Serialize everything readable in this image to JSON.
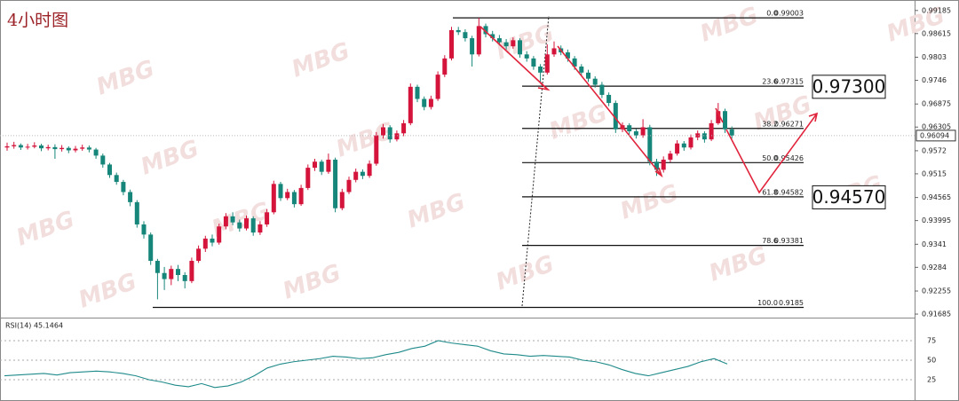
{
  "chart_data": {
    "type": "candlestick",
    "title": "4小时图",
    "watermark": "MBG",
    "up_color": "#d4143a",
    "down_color": "#16867a",
    "ylim": [
      0.9162,
      0.994
    ],
    "yticks": [
      0.99185,
      0.98615,
      0.9803,
      0.9746,
      0.96875,
      0.96305,
      0.9572,
      0.9515,
      0.94565,
      0.93995,
      0.9341,
      0.9284,
      0.92255,
      0.91685
    ],
    "candles": [
      [
        0.958,
        0.9592,
        0.9572,
        0.9583
      ],
      [
        0.9583,
        0.9594,
        0.9577,
        0.9586
      ],
      [
        0.9586,
        0.959,
        0.9574,
        0.958
      ],
      [
        0.958,
        0.9589,
        0.9575,
        0.9582
      ],
      [
        0.9582,
        0.9593,
        0.9578,
        0.9585
      ],
      [
        0.9585,
        0.9589,
        0.9571,
        0.9578
      ],
      [
        0.9578,
        0.9587,
        0.9573,
        0.9581
      ],
      [
        0.9581,
        0.9588,
        0.9552,
        0.9576
      ],
      [
        0.9576,
        0.9586,
        0.957,
        0.9579
      ],
      [
        0.9579,
        0.9583,
        0.9566,
        0.9573
      ],
      [
        0.9573,
        0.9584,
        0.9568,
        0.9577
      ],
      [
        0.9577,
        0.9587,
        0.9572,
        0.958
      ],
      [
        0.958,
        0.9585,
        0.9568,
        0.9575
      ],
      [
        0.9575,
        0.9579,
        0.9552,
        0.956
      ],
      [
        0.956,
        0.9565,
        0.953,
        0.9538
      ],
      [
        0.9538,
        0.9542,
        0.9505,
        0.9512
      ],
      [
        0.9512,
        0.9518,
        0.9488,
        0.9495
      ],
      [
        0.9495,
        0.95,
        0.9462,
        0.947
      ],
      [
        0.947,
        0.9476,
        0.9435,
        0.9445
      ],
      [
        0.9445,
        0.945,
        0.9382,
        0.939
      ],
      [
        0.939,
        0.9398,
        0.9355,
        0.9365
      ],
      [
        0.9365,
        0.937,
        0.929,
        0.93
      ],
      [
        0.93,
        0.9305,
        0.9205,
        0.927
      ],
      [
        0.927,
        0.9285,
        0.9228,
        0.9255
      ],
      [
        0.9255,
        0.9288,
        0.924,
        0.928
      ],
      [
        0.928,
        0.929,
        0.925,
        0.9265
      ],
      [
        0.9265,
        0.9272,
        0.9232,
        0.925
      ],
      [
        0.925,
        0.9308,
        0.9245,
        0.93
      ],
      [
        0.93,
        0.9338,
        0.9295,
        0.933
      ],
      [
        0.933,
        0.9362,
        0.9322,
        0.9355
      ],
      [
        0.9355,
        0.9365,
        0.9336,
        0.9345
      ],
      [
        0.9345,
        0.9392,
        0.934,
        0.9385
      ],
      [
        0.9385,
        0.9418,
        0.9378,
        0.941
      ],
      [
        0.941,
        0.942,
        0.9388,
        0.9395
      ],
      [
        0.9395,
        0.9402,
        0.9372,
        0.938
      ],
      [
        0.938,
        0.9412,
        0.9375,
        0.9405
      ],
      [
        0.9405,
        0.941,
        0.9362,
        0.937
      ],
      [
        0.937,
        0.9398,
        0.9364,
        0.939
      ],
      [
        0.939,
        0.9428,
        0.9384,
        0.942
      ],
      [
        0.942,
        0.9498,
        0.9415,
        0.949
      ],
      [
        0.949,
        0.9495,
        0.9448,
        0.9455
      ],
      [
        0.9455,
        0.9478,
        0.945,
        0.947
      ],
      [
        0.947,
        0.9475,
        0.9432,
        0.944
      ],
      [
        0.944,
        0.9488,
        0.9436,
        0.948
      ],
      [
        0.948,
        0.9538,
        0.9475,
        0.953
      ],
      [
        0.953,
        0.9552,
        0.9522,
        0.9545
      ],
      [
        0.9545,
        0.955,
        0.9512,
        0.952
      ],
      [
        0.952,
        0.9565,
        0.9515,
        0.955
      ],
      [
        0.955,
        0.9555,
        0.942,
        0.943
      ],
      [
        0.943,
        0.9478,
        0.9425,
        0.947
      ],
      [
        0.947,
        0.9508,
        0.9465,
        0.95
      ],
      [
        0.95,
        0.9528,
        0.9494,
        0.952
      ],
      [
        0.952,
        0.9526,
        0.9502,
        0.951
      ],
      [
        0.951,
        0.9548,
        0.9505,
        0.954
      ],
      [
        0.954,
        0.9618,
        0.9535,
        0.961
      ],
      [
        0.961,
        0.9638,
        0.9602,
        0.963
      ],
      [
        0.963,
        0.9635,
        0.9592,
        0.96
      ],
      [
        0.96,
        0.9622,
        0.9595,
        0.9615
      ],
      [
        0.9615,
        0.9648,
        0.9608,
        0.964
      ],
      [
        0.964,
        0.9738,
        0.9635,
        0.973
      ],
      [
        0.973,
        0.9735,
        0.9692,
        0.97
      ],
      [
        0.97,
        0.9706,
        0.9672,
        0.968
      ],
      [
        0.968,
        0.9708,
        0.9674,
        0.97
      ],
      [
        0.97,
        0.9768,
        0.9695,
        0.976
      ],
      [
        0.976,
        0.9808,
        0.9754,
        0.98
      ],
      [
        0.98,
        0.9878,
        0.9795,
        0.987
      ],
      [
        0.987,
        0.9878,
        0.9858,
        0.9865
      ],
      [
        0.9865,
        0.9872,
        0.9842,
        0.985
      ],
      [
        0.985,
        0.9856,
        0.978,
        0.981
      ],
      [
        0.981,
        0.99,
        0.9805,
        0.988
      ],
      [
        0.988,
        0.9886,
        0.9852,
        0.986
      ],
      [
        0.986,
        0.9868,
        0.9842,
        0.985
      ],
      [
        0.985,
        0.9858,
        0.9832,
        0.984
      ],
      [
        0.984,
        0.9848,
        0.9822,
        0.983
      ],
      [
        0.983,
        0.9852,
        0.9824,
        0.9845
      ],
      [
        0.9845,
        0.985,
        0.9802,
        0.981
      ],
      [
        0.981,
        0.9818,
        0.9792,
        0.98
      ],
      [
        0.98,
        0.9806,
        0.9772,
        0.978
      ],
      [
        0.978,
        0.9786,
        0.974,
        0.9765
      ],
      [
        0.9765,
        0.9835,
        0.976,
        0.981
      ],
      [
        0.981,
        0.9842,
        0.9804,
        0.9825
      ],
      [
        0.9825,
        0.9832,
        0.9808,
        0.9815
      ],
      [
        0.9815,
        0.9822,
        0.9792,
        0.98
      ],
      [
        0.98,
        0.9806,
        0.9772,
        0.978
      ],
      [
        0.978,
        0.9786,
        0.9758,
        0.9765
      ],
      [
        0.9765,
        0.9772,
        0.9742,
        0.975
      ],
      [
        0.975,
        0.9756,
        0.9728,
        0.9735
      ],
      [
        0.9735,
        0.9742,
        0.9702,
        0.971
      ],
      [
        0.971,
        0.9716,
        0.9682,
        0.969
      ],
      [
        0.969,
        0.9696,
        0.9616,
        0.9625
      ],
      [
        0.9625,
        0.9642,
        0.9618,
        0.9635
      ],
      [
        0.9635,
        0.964,
        0.9612,
        0.962
      ],
      [
        0.962,
        0.9626,
        0.9602,
        0.961
      ],
      [
        0.961,
        0.965,
        0.9604,
        0.963
      ],
      [
        0.963,
        0.9636,
        0.9536,
        0.9545
      ],
      [
        0.9545,
        0.9552,
        0.951,
        0.9525
      ],
      [
        0.9525,
        0.9558,
        0.9518,
        0.955
      ],
      [
        0.955,
        0.9572,
        0.9544,
        0.9565
      ],
      [
        0.9565,
        0.9598,
        0.956,
        0.959
      ],
      [
        0.959,
        0.9596,
        0.9572,
        0.958
      ],
      [
        0.958,
        0.9612,
        0.9575,
        0.9605
      ],
      [
        0.9605,
        0.9622,
        0.9598,
        0.9615
      ],
      [
        0.9615,
        0.962,
        0.9592,
        0.96
      ],
      [
        0.96,
        0.9648,
        0.9596,
        0.964
      ],
      [
        0.964,
        0.969,
        0.9636,
        0.967
      ],
      [
        0.967,
        0.9676,
        0.9616,
        0.9625
      ],
      [
        0.9625,
        0.9632,
        0.9602,
        0.96094
      ]
    ],
    "fib_levels": [
      {
        "ratio": "0.0",
        "price": 0.99003
      },
      {
        "ratio": "23.6",
        "price": 0.97315
      },
      {
        "ratio": "38.2",
        "price": 0.96271
      },
      {
        "ratio": "50.0",
        "price": 0.95426
      },
      {
        "ratio": "61.8",
        "price": 0.94582
      },
      {
        "ratio": "78.6",
        "price": 0.93381
      },
      {
        "ratio": "100.0",
        "price": 0.9185
      }
    ],
    "targets": [
      {
        "value": 0.973,
        "label": "0.97300"
      },
      {
        "value": 0.9457,
        "label": "0.94570"
      }
    ],
    "current_price": 0.96094,
    "rsi": {
      "label": "RSI(14) 45.1464",
      "color": "#1f8a8a",
      "ylim": [
        0,
        100
      ],
      "yticks": [
        25,
        50,
        75
      ],
      "values": [
        30,
        31,
        32,
        33,
        31,
        34,
        35,
        36,
        35,
        33,
        30,
        25,
        22,
        18,
        16,
        20,
        15,
        17,
        22,
        30,
        40,
        45,
        48,
        50,
        52,
        55,
        54,
        52,
        53,
        57,
        60,
        65,
        68,
        75,
        72,
        70,
        68,
        62,
        58,
        57,
        55,
        56,
        55,
        54,
        50,
        48,
        44,
        38,
        33,
        30,
        34,
        38,
        42,
        48,
        52,
        45.1464
      ]
    }
  }
}
